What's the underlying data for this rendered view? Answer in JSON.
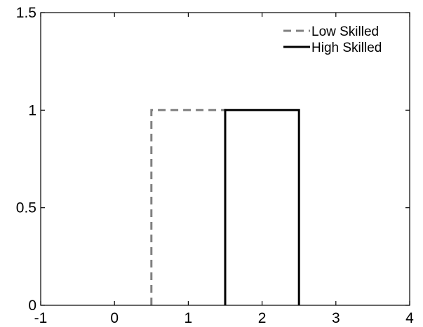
{
  "chart_data": {
    "type": "line",
    "xlim": [
      -1,
      4
    ],
    "ylim": [
      0,
      1.5
    ],
    "x_ticks": [
      {
        "value": -1,
        "label": "-1"
      },
      {
        "value": 0,
        "label": "0"
      },
      {
        "value": 1,
        "label": "1"
      },
      {
        "value": 2,
        "label": "2"
      },
      {
        "value": 3,
        "label": "3"
      },
      {
        "value": 4,
        "label": "4"
      }
    ],
    "y_ticks": [
      {
        "value": 0,
        "label": "0"
      },
      {
        "value": 0.5,
        "label": "0.5"
      },
      {
        "value": 1,
        "label": "1"
      },
      {
        "value": 1.5,
        "label": "1.5"
      }
    ],
    "grid": false,
    "legend_position": "top-right",
    "series": [
      {
        "name": "Low Skilled",
        "style": "dashed",
        "color": "#808080",
        "x": [
          0.5,
          0.5,
          1.5,
          1.5
        ],
        "y": [
          0,
          1,
          1,
          0
        ]
      },
      {
        "name": "High Skilled",
        "style": "solid",
        "color": "#000000",
        "x": [
          1.5,
          1.5,
          2.5,
          2.5
        ],
        "y": [
          0,
          1,
          1,
          0
        ]
      }
    ]
  }
}
